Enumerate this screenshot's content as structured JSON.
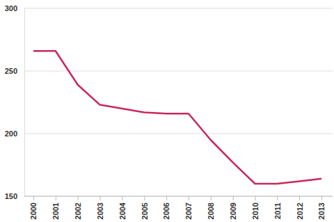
{
  "chart_data": {
    "type": "line",
    "categories": [
      "2000",
      "2001",
      "2002",
      "2003",
      "2004",
      "2005",
      "2006",
      "2007",
      "2008",
      "2009",
      "2010",
      "2011",
      "2012",
      "2013"
    ],
    "values": [
      266,
      266,
      239,
      223,
      220,
      217,
      216,
      216,
      195,
      177,
      160,
      160,
      162,
      164
    ],
    "color": "#c8285a",
    "ylim": [
      150,
      300
    ],
    "yticks": [
      150,
      200,
      250,
      300
    ],
    "grid": true
  }
}
